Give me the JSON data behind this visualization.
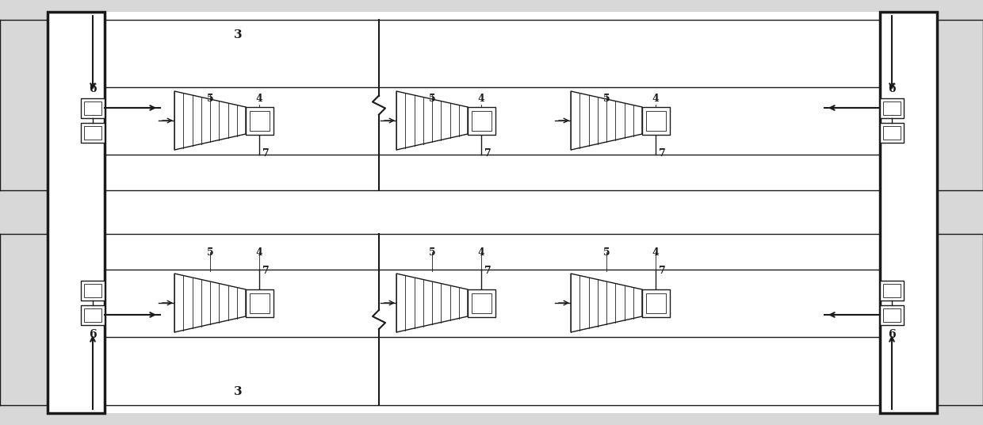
{
  "bg_color": "#d8d8d8",
  "inner_bg": "#ffffff",
  "line_color": "#1a1a1a",
  "fig_width": 12.4,
  "fig_height": 5.36,
  "dpi": 100,
  "lw_thick": 2.5,
  "lw_med": 1.5,
  "lw_thin": 1.0,
  "lw_hair": 0.6,
  "label_fontsize": 10,
  "label_fontsize_lg": 11
}
